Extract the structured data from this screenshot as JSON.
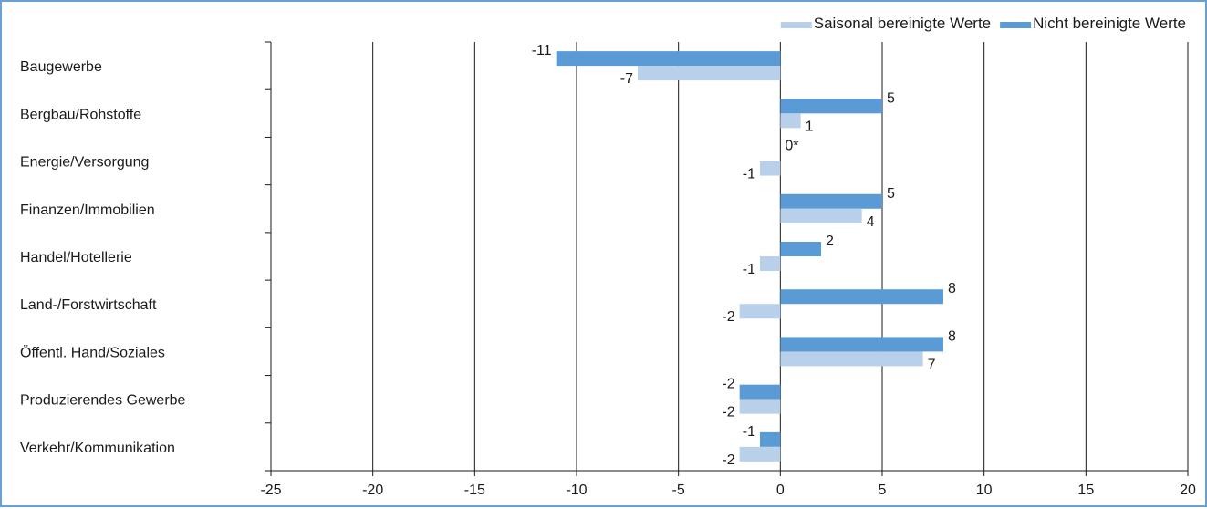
{
  "chart_data": {
    "type": "bar",
    "orientation": "horizontal",
    "categories": [
      "Baugewerbe",
      "Bergbau/Rohstoffe",
      "Energie/Versorgung",
      "Finanzen/Immobilien",
      "Handel/Hotellerie",
      "Land-/Forstwirtschaft",
      "Öffentl. Hand/Soziales",
      "Produzierendes Gewerbe",
      "Verkehr/Kommunikation"
    ],
    "series": [
      {
        "name": "Nicht bereinigte Werte",
        "color": "#5b9bd5",
        "values": [
          -11,
          5,
          0,
          5,
          2,
          8,
          8,
          -2,
          -1
        ],
        "labels": [
          "-11",
          "5",
          "0*",
          "5",
          "2",
          "8",
          "8",
          "-2",
          "-1"
        ]
      },
      {
        "name": "Saisonal bereinigte Werte",
        "color": "#b8d0ea",
        "values": [
          -7,
          1,
          -1,
          4,
          -1,
          -2,
          7,
          -2,
          -2
        ],
        "labels": [
          "-7",
          "1",
          "-1",
          "4",
          "-1",
          "-2",
          "7",
          "-2",
          "-2"
        ]
      }
    ],
    "legend_order": [
      "Saisonal bereinigte Werte",
      "Nicht bereinigte Werte"
    ],
    "legend_position": "top-right",
    "xlim": [
      -25,
      20
    ],
    "xticks": [
      -25,
      -20,
      -15,
      -10,
      -5,
      0,
      5,
      10,
      15,
      20
    ],
    "xtick_labels": [
      "-25",
      "-20",
      "-15",
      "-10",
      "-5",
      "0",
      "5",
      "10",
      "15",
      "20"
    ],
    "vertical_grid": true,
    "title": "",
    "xlabel": "",
    "ylabel": ""
  }
}
